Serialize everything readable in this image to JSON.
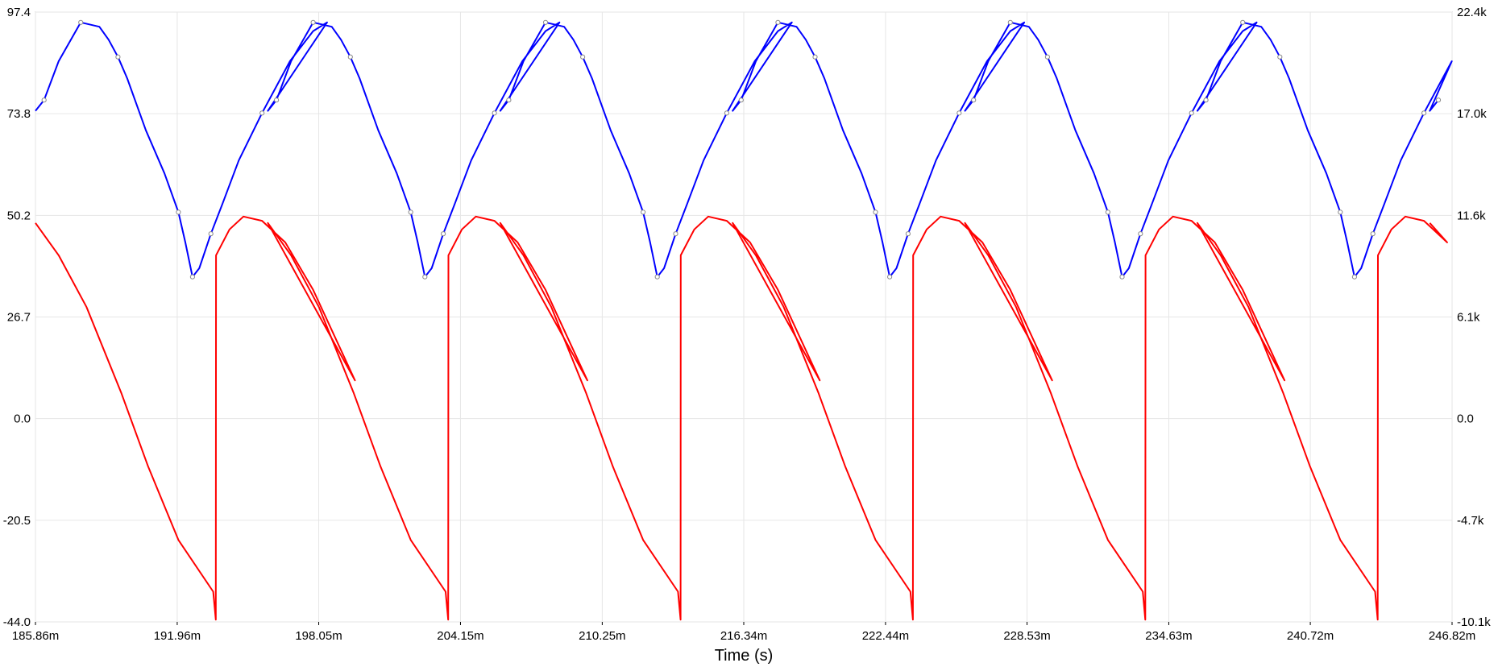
{
  "chart_data": {
    "type": "line",
    "xlabel": "Time (s)",
    "x_unit": "s",
    "x_ticks": [
      "185.86m",
      "191.96m",
      "198.05m",
      "204.15m",
      "210.25m",
      "216.34m",
      "222.44m",
      "228.53m",
      "234.63m",
      "240.72m",
      "246.82m"
    ],
    "x_tick_values": [
      0.18586,
      0.19196,
      0.19805,
      0.20415,
      0.21025,
      0.21634,
      0.22244,
      0.22853,
      0.23463,
      0.24072,
      0.24682
    ],
    "xlim": [
      0.18586,
      0.24682
    ],
    "y_left": {
      "ticks": [
        "97.4",
        "73.8",
        "50.2",
        "26.7",
        "0.0",
        "-20.5",
        "-44.0"
      ],
      "lim": [
        -44.0,
        97.4
      ]
    },
    "y_right": {
      "ticks": [
        "22.4k",
        "17.0k",
        "11.6k",
        "6.1k",
        "0.0",
        "-4.7k",
        "-10.1k"
      ],
      "lim": [
        -10100,
        22400
      ]
    },
    "grid": true,
    "period": 0.01
  },
  "series": [
    {
      "color": "#0000ff",
      "axis": "left",
      "markers": true,
      "points": [
        [
          0.18586,
          74.5
        ],
        [
          0.18623,
          77
        ],
        [
          0.18686,
          86
        ],
        [
          0.18781,
          95
        ],
        [
          0.18861,
          94
        ],
        [
          0.18901,
          91
        ],
        [
          0.18941,
          87
        ],
        [
          0.18981,
          82
        ],
        [
          0.19061,
          70
        ],
        [
          0.19141,
          60
        ],
        [
          0.19201,
          51
        ],
        [
          0.19231,
          44
        ],
        [
          0.19262,
          36
        ],
        [
          0.19291,
          38
        ],
        [
          0.19341,
          46
        ],
        [
          0.19391,
          53
        ],
        [
          0.19461,
          63
        ],
        [
          0.19561,
          74
        ],
        [
          0.19681,
          86
        ],
        [
          0.19781,
          93
        ],
        [
          0.19841,
          95
        ]
      ],
      "marker_points": [
        [
          0.18623,
          77
        ],
        [
          0.18781,
          95
        ],
        [
          0.18941,
          87
        ],
        [
          0.19201,
          51
        ],
        [
          0.19262,
          36
        ],
        [
          0.19341,
          46
        ],
        [
          0.19561,
          74
        ]
      ]
    },
    {
      "color": "#ff0000",
      "axis": "left",
      "markers": false,
      "points": [
        [
          0.18586,
          48.5
        ],
        [
          0.18686,
          41
        ],
        [
          0.18806,
          29
        ],
        [
          0.18956,
          9
        ],
        [
          0.19071,
          -8
        ],
        [
          0.19201,
          -25
        ],
        [
          0.19351,
          -37
        ],
        [
          0.19362,
          -43.5
        ],
        [
          0.19363,
          41
        ],
        [
          0.19421,
          47
        ],
        [
          0.19481,
          50
        ],
        [
          0.19561,
          49
        ],
        [
          0.19661,
          44
        ],
        [
          0.19781,
          33
        ],
        [
          0.19961,
          12
        ]
      ]
    }
  ]
}
